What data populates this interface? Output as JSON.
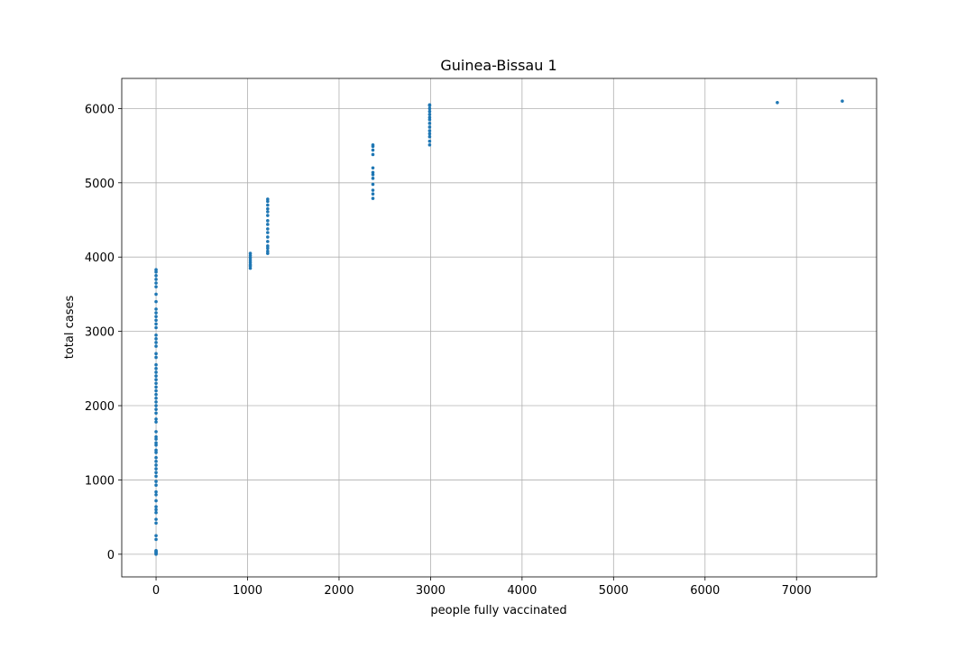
{
  "chart_data": {
    "type": "scatter",
    "title": "Guinea-Bissau 1",
    "x_label": "people fully vaccinated",
    "y_label": "total cases",
    "color": "#1f77b4",
    "grid": true,
    "xlim": [
      -375,
      7875
    ],
    "ylim": [
      -305,
      6405
    ],
    "xticks": [
      0,
      1000,
      2000,
      3000,
      4000,
      5000,
      6000,
      7000
    ],
    "yticks": [
      0,
      1000,
      2000,
      3000,
      4000,
      5000,
      6000
    ],
    "x": [
      0,
      0,
      0,
      0,
      0,
      0,
      0,
      0,
      0,
      0,
      0,
      0,
      0,
      0,
      0,
      0,
      0,
      0,
      0,
      0,
      0,
      0,
      0,
      0,
      0,
      0,
      0,
      0,
      0,
      0,
      0,
      0,
      0,
      0,
      0,
      0,
      0,
      0,
      0,
      0,
      0,
      0,
      0,
      0,
      0,
      0,
      0,
      0,
      0,
      0,
      0,
      0,
      0,
      0,
      0,
      0,
      0,
      0,
      0,
      0,
      0,
      0,
      0,
      0,
      0,
      0,
      0,
      1030,
      1030,
      1030,
      1030,
      1030,
      1030,
      1030,
      1030,
      1220,
      1220,
      1220,
      1220,
      1220,
      1220,
      1220,
      1220,
      1220,
      1220,
      1220,
      1220,
      1220,
      1220,
      1220,
      1220,
      2370,
      2370,
      2370,
      2370,
      2370,
      2370,
      2370,
      2370,
      2370,
      2370,
      2370,
      2370,
      2990,
      2990,
      2990,
      2990,
      2990,
      2990,
      2990,
      2990,
      2990,
      2990,
      2990,
      2990,
      2990,
      2990,
      6790,
      7500
    ],
    "values": [
      0,
      10,
      20,
      30,
      40,
      50,
      200,
      250,
      420,
      470,
      560,
      600,
      640,
      720,
      800,
      840,
      930,
      980,
      1050,
      1100,
      1150,
      1200,
      1250,
      1300,
      1370,
      1400,
      1470,
      1500,
      1550,
      1580,
      1650,
      1780,
      1820,
      1900,
      1950,
      2000,
      2050,
      2100,
      2150,
      2200,
      2250,
      2300,
      2350,
      2400,
      2450,
      2500,
      2550,
      2650,
      2700,
      2800,
      2850,
      2900,
      2950,
      3050,
      3100,
      3150,
      3200,
      3250,
      3300,
      3400,
      3500,
      3600,
      3650,
      3700,
      3750,
      3800,
      3830,
      3850,
      3880,
      3900,
      3930,
      3960,
      3990,
      4020,
      4050,
      4050,
      4080,
      4120,
      4150,
      4210,
      4270,
      4330,
      4380,
      4440,
      4490,
      4560,
      4610,
      4650,
      4700,
      4750,
      4780,
      4790,
      4850,
      4900,
      4980,
      5060,
      5110,
      5140,
      5200,
      5380,
      5440,
      5490,
      5510,
      5510,
      5560,
      5620,
      5660,
      5700,
      5750,
      5800,
      5850,
      5880,
      5920,
      5960,
      6000,
      6040,
      6050,
      6080,
      6100
    ]
  }
}
